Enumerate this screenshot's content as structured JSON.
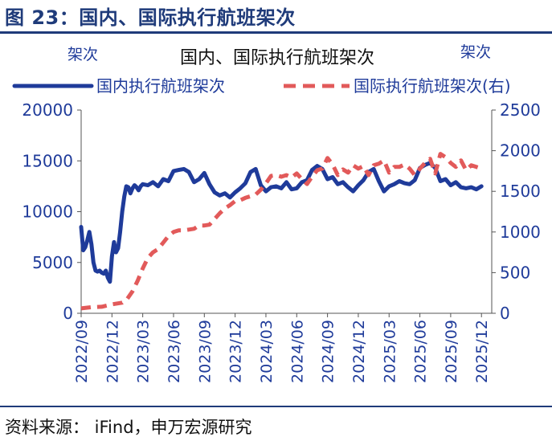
{
  "figure_title": "图 23：国内、国际执行航班架次",
  "source": "资料来源：  iFind，申万宏源研究",
  "colors": {
    "domestic": "#1f3b9a",
    "international": "#e25a5a",
    "rule": "#1f3b7a",
    "axis_text": "#1f3b9a"
  },
  "chart_data": {
    "type": "line",
    "title": "国内、国际执行航班架次",
    "ylabel_left": "架次",
    "ylabel_right": "架次",
    "ylim_left": [
      0,
      20000
    ],
    "ylim_right": [
      0,
      2500
    ],
    "yticks_left": [
      "0",
      "5000",
      "10000",
      "15000",
      "20000"
    ],
    "yticks_right": [
      "0",
      "500",
      "1000",
      "1500",
      "2000",
      "2500"
    ],
    "xlim": [
      0,
      40
    ],
    "xticks": [
      "2022/09",
      "2022/12",
      "2023/03",
      "2023/06",
      "2023/09",
      "2023/12",
      "2024/03",
      "2024/06",
      "2024/09",
      "2024/12",
      "2025/03",
      "2025/06",
      "2025/09",
      "2025/12"
    ],
    "legend_position": "top",
    "grid": false,
    "series": [
      {
        "name": "国内执行航班架次",
        "axis": "left",
        "style": "solid",
        "x": [
          0,
          0.2,
          0.4,
          0.6,
          0.8,
          1.0,
          1.2,
          1.4,
          1.6,
          1.8,
          2.0,
          2.2,
          2.4,
          2.6,
          2.8,
          3.0,
          3.2,
          3.4,
          3.6,
          3.8,
          4.0,
          4.2,
          4.4,
          4.6,
          4.8,
          5.0,
          5.2,
          5.4,
          5.6,
          5.8,
          6.0,
          6.5,
          7.0,
          7.5,
          8.0,
          8.5,
          9.0,
          9.5,
          10.0,
          10.5,
          11.0,
          11.5,
          12.0,
          12.5,
          13.0,
          13.5,
          14.0,
          14.5,
          15.0,
          15.5,
          16.0,
          16.5,
          17.0,
          17.5,
          18.0,
          18.5,
          19.0,
          19.5,
          20.0,
          20.5,
          21.0,
          21.5,
          22.0,
          22.5,
          23.0,
          23.5,
          24.0,
          24.5,
          25.0,
          25.5,
          26.0,
          26.5,
          27.0,
          27.5,
          28.0,
          28.5,
          29.0,
          29.5,
          30.0,
          30.5,
          31.0,
          31.5,
          32.0,
          32.5,
          33.0,
          33.5,
          34.0,
          34.5,
          35.0,
          35.5,
          36.0,
          36.5,
          37.0,
          37.5,
          38.0,
          38.5,
          39.0
        ],
        "y": [
          8500,
          6200,
          6500,
          7200,
          8000,
          6800,
          5000,
          4200,
          4100,
          4200,
          4000,
          3900,
          4200,
          3500,
          3100,
          5600,
          7000,
          6000,
          6400,
          8000,
          10000,
          11500,
          12500,
          12400,
          11800,
          12300,
          12600,
          12400,
          12100,
          12500,
          12700,
          12600,
          12900,
          12500,
          13200,
          13000,
          14000,
          14100,
          14200,
          13900,
          12900,
          13200,
          13800,
          12700,
          11900,
          11600,
          11800,
          11400,
          11900,
          12300,
          12800,
          13900,
          14200,
          12600,
          12000,
          12400,
          12500,
          12300,
          12900,
          12200,
          12300,
          12900,
          13100,
          14100,
          14500,
          14200,
          13200,
          13400,
          12700,
          12900,
          12400,
          12000,
          12600,
          13100,
          13900,
          14200,
          13000,
          12000,
          12500,
          12700,
          13000,
          12800,
          12700,
          13100,
          14300,
          14600,
          14800,
          14300,
          13000,
          13200,
          12600,
          12900,
          12400,
          12300,
          12400,
          12200,
          12500
        ]
      },
      {
        "name": "国际执行航班架次(右)",
        "axis": "right",
        "style": "dashed",
        "x": [
          0,
          1,
          2,
          3,
          4,
          4.5,
          5,
          5.5,
          6,
          6.5,
          7,
          7.5,
          8,
          8.5,
          9,
          9.5,
          10,
          10.5,
          11,
          11.5,
          12,
          12.5,
          13,
          13.5,
          14,
          14.5,
          15,
          15.5,
          16,
          16.5,
          17,
          17.5,
          18,
          18.5,
          19,
          19.5,
          20,
          20.5,
          21,
          21.5,
          22,
          22.5,
          23,
          23.5,
          24,
          24.5,
          25,
          25.5,
          26,
          26.5,
          27,
          27.5,
          28,
          28.5,
          29,
          29.5,
          30,
          30.5,
          31,
          31.5,
          32,
          32.5,
          33,
          33.5,
          34,
          34.5,
          35,
          35.5,
          36,
          36.5,
          37,
          37.5,
          38,
          38.5,
          39
        ],
        "y": [
          60,
          75,
          80,
          110,
          130,
          180,
          270,
          400,
          550,
          680,
          750,
          790,
          870,
          950,
          1000,
          1020,
          1020,
          1030,
          1040,
          1080,
          1080,
          1090,
          1160,
          1230,
          1290,
          1330,
          1380,
          1390,
          1420,
          1440,
          1460,
          1520,
          1600,
          1690,
          1700,
          1680,
          1700,
          1670,
          1720,
          1650,
          1590,
          1680,
          1760,
          1780,
          1910,
          1830,
          1700,
          1770,
          1730,
          1820,
          1780,
          1810,
          1700,
          1820,
          1840,
          1880,
          1730,
          1800,
          1800,
          1830,
          1780,
          1700,
          1780,
          1850,
          1900,
          1720,
          1960,
          1920,
          1850,
          1800,
          1880,
          1760,
          1820,
          1800,
          1780
        ]
      }
    ]
  }
}
